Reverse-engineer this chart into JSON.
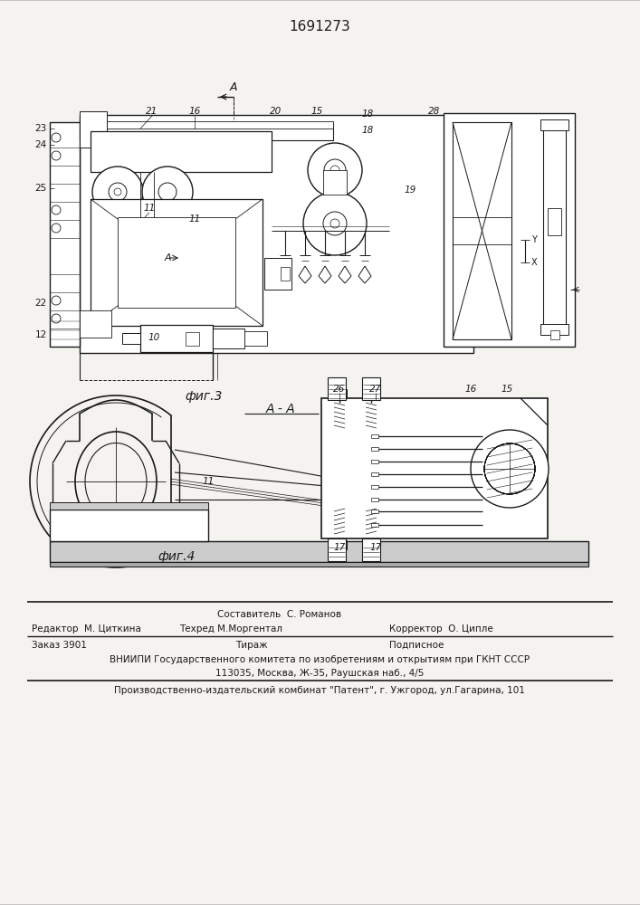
{
  "title_number": "1691273",
  "fig3_label": "фиг.3",
  "fig4_label": "фиг.4",
  "section_label": "А - А",
  "arrow_label": "А",
  "background_color": "#f5f3f0",
  "line_color": "#1a1a1a",
  "footer3": "Производственно-издательский комбинат \"Патент\", г. Ужгород, ул.Гагарина, 101"
}
